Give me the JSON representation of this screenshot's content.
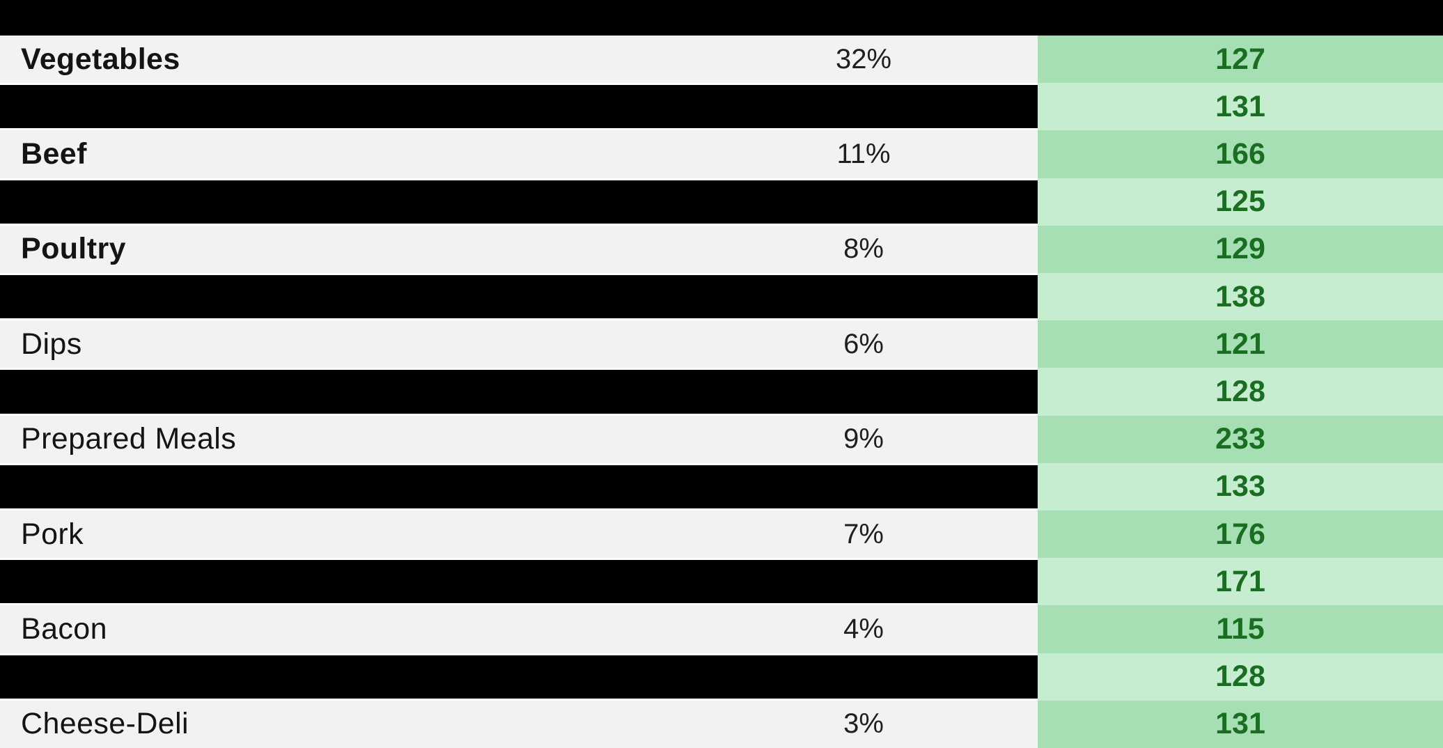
{
  "chart_data": {
    "type": "table",
    "description": "Category share table with redacted alternate rows and a green value column",
    "value_column_shades": {
      "category_rows": "dark",
      "redacted_rows": "light"
    },
    "rows": [
      {
        "label": "Vegetables",
        "pct": "32%",
        "value": "127",
        "bold": true,
        "redacted": false
      },
      {
        "label": "",
        "pct": "",
        "value": "131",
        "bold": false,
        "redacted": true
      },
      {
        "label": "Beef",
        "pct": "11%",
        "value": "166",
        "bold": true,
        "redacted": false
      },
      {
        "label": "",
        "pct": "",
        "value": "125",
        "bold": false,
        "redacted": true
      },
      {
        "label": "Poultry",
        "pct": "8%",
        "value": "129",
        "bold": true,
        "redacted": false
      },
      {
        "label": "",
        "pct": "",
        "value": "138",
        "bold": false,
        "redacted": true
      },
      {
        "label": "Dips",
        "pct": "6%",
        "value": "121",
        "bold": false,
        "redacted": false
      },
      {
        "label": "",
        "pct": "",
        "value": "128",
        "bold": false,
        "redacted": true
      },
      {
        "label": "Prepared Meals",
        "pct": "9%",
        "value": "233",
        "bold": false,
        "redacted": false
      },
      {
        "label": "",
        "pct": "",
        "value": "133",
        "bold": false,
        "redacted": true
      },
      {
        "label": "Pork",
        "pct": "7%",
        "value": "176",
        "bold": false,
        "redacted": false
      },
      {
        "label": "",
        "pct": "",
        "value": "171",
        "bold": false,
        "redacted": true
      },
      {
        "label": "Bacon",
        "pct": "4%",
        "value": "115",
        "bold": false,
        "redacted": false
      },
      {
        "label": "",
        "pct": "",
        "value": "128",
        "bold": false,
        "redacted": true
      },
      {
        "label": "Cheese-Deli",
        "pct": "3%",
        "value": "131",
        "bold": false,
        "redacted": false
      }
    ]
  },
  "colors": {
    "top_bar": "#000000",
    "category_row_bg": "#f2f2f2",
    "redacted_bar": "#000000",
    "value_dark_bg": "#a5dfb3",
    "value_light_bg": "#c7edd0",
    "value_text": "#1a6e21",
    "label_text": "#141414"
  }
}
